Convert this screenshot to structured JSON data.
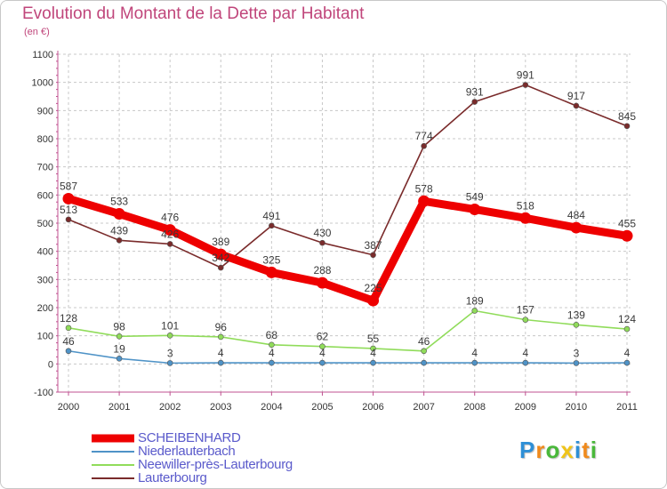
{
  "chart_data": {
    "type": "line",
    "title": "Evolution du Montant de la Dette par Habitant",
    "subtitle": "(en €)",
    "x": [
      "2000",
      "2001",
      "2002",
      "2003",
      "2004",
      "2005",
      "2006",
      "2007",
      "2008",
      "2009",
      "2010",
      "2011"
    ],
    "y_ticks": [
      "-100",
      "0",
      "100",
      "200",
      "300",
      "400",
      "500",
      "600",
      "700",
      "800",
      "900",
      "1000",
      "1100"
    ],
    "ylim": [
      -100,
      1100
    ],
    "grid": true,
    "legend_position": "bottom-left",
    "series": [
      {
        "name": "SCHEIBENHARD",
        "color": "#ee0000",
        "values": [
          587,
          533,
          476,
          389,
          325,
          288,
          225,
          578,
          549,
          518,
          484,
          455
        ],
        "labels": [
          "587",
          "533",
          "476",
          "389",
          "325",
          "288",
          "225",
          "578",
          "549",
          "518",
          "484",
          "455"
        ]
      },
      {
        "name": "Niederlauterbach",
        "color": "#4f93c7",
        "values": [
          46,
          19,
          3,
          4,
          4,
          4,
          4,
          4,
          4,
          4,
          3,
          4
        ],
        "labels": [
          "46",
          "19",
          "3",
          "4",
          "4",
          "4",
          "4",
          "",
          "4",
          "4",
          "3",
          "4"
        ]
      },
      {
        "name": "Neewiller-près-Lauterbourg",
        "color": "#90dc5a",
        "values": [
          128,
          98,
          101,
          96,
          68,
          62,
          55,
          46,
          189,
          157,
          139,
          124
        ],
        "labels": [
          "128",
          "98",
          "101",
          "96",
          "68",
          "62",
          "55",
          "46",
          "189",
          "157",
          "139",
          "124"
        ]
      },
      {
        "name": "Lauterbourg",
        "color": "#7a2b2b",
        "values": [
          513,
          439,
          426,
          342,
          491,
          430,
          387,
          774,
          931,
          991,
          917,
          845
        ],
        "labels": [
          "513",
          "439",
          "426",
          "342",
          "491",
          "430",
          "387",
          "774",
          "931",
          "991",
          "917",
          "845"
        ]
      }
    ]
  },
  "brand": {
    "letters": [
      "P",
      "r",
      "o",
      "x",
      "i",
      "t",
      "i"
    ],
    "colors": [
      "#2e8fd6",
      "#f08a1c",
      "#49b83a",
      "#f0c419",
      "#2e8fd6",
      "#f08a1c",
      "#49b83a"
    ]
  }
}
